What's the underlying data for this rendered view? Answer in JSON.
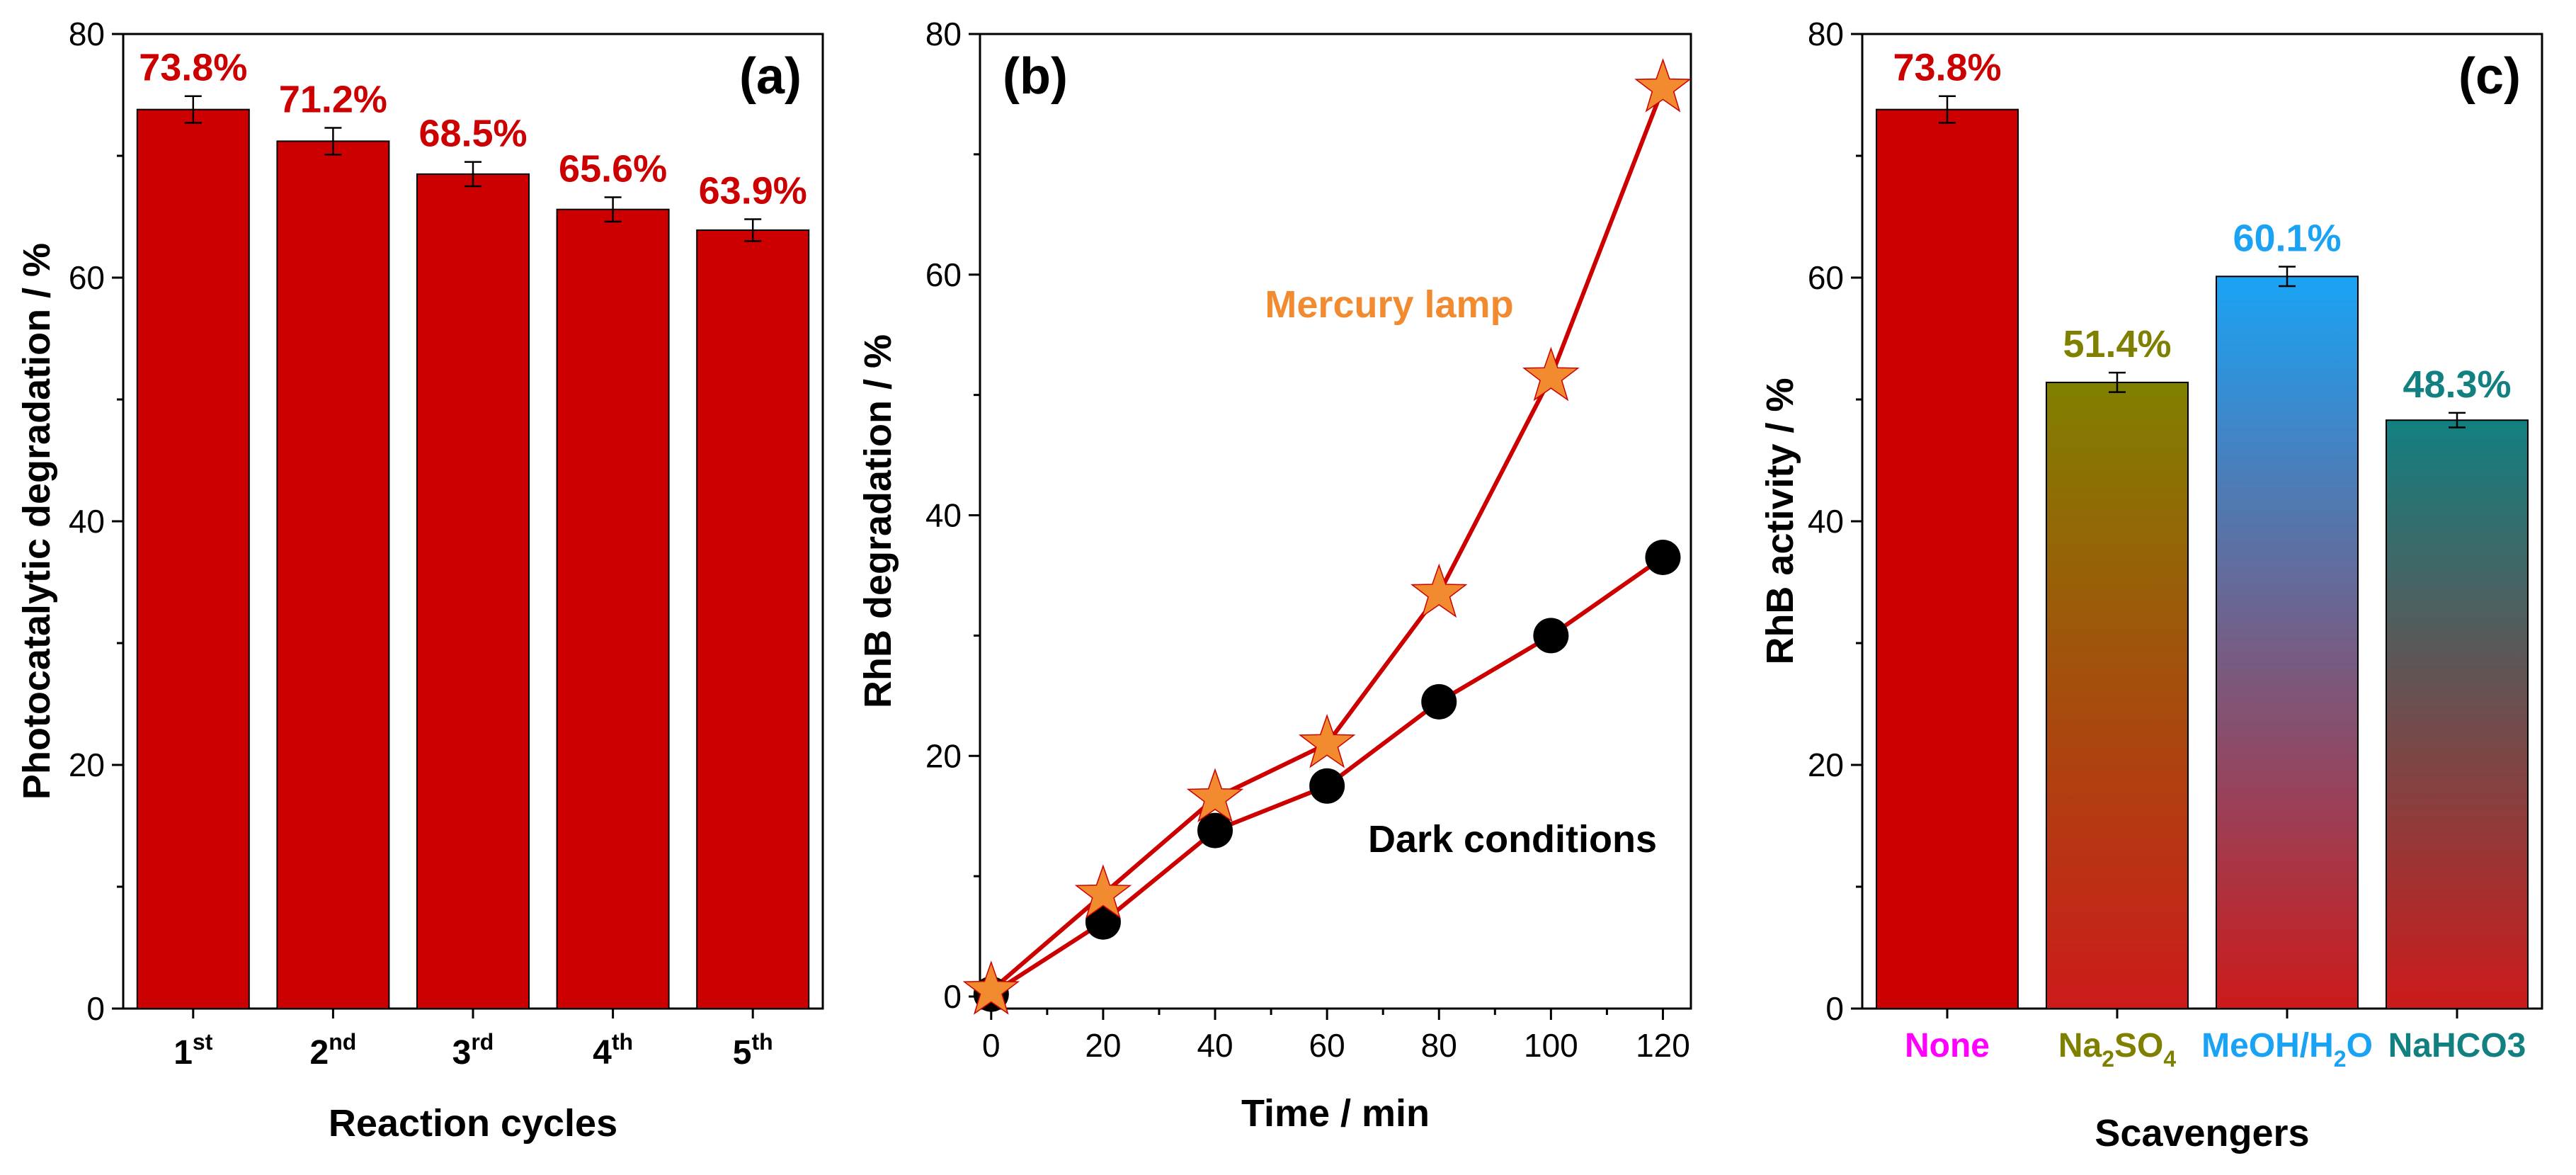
{
  "chart_data": [
    {
      "panel": "(a)",
      "type": "bar",
      "xlabel": "Reaction cycles",
      "ylabel": "Photocatalytic degradation / %",
      "ylim": [
        0,
        80
      ],
      "yticks": [
        0,
        20,
        40,
        60,
        80
      ],
      "categories": [
        {
          "base": "1",
          "sup": "st"
        },
        {
          "base": "2",
          "sup": "nd"
        },
        {
          "base": "3",
          "sup": "rd"
        },
        {
          "base": "4",
          "sup": "th"
        },
        {
          "base": "5",
          "sup": "th"
        }
      ],
      "values": [
        73.8,
        71.2,
        68.5,
        65.6,
        63.9
      ],
      "errors": [
        1.1,
        1.1,
        1.0,
        1.0,
        0.9
      ],
      "labels": [
        "73.8%",
        "71.2%",
        "68.5%",
        "65.6%",
        "63.9%"
      ],
      "bar_color": "#cc0000",
      "label_color": "#cc0000"
    },
    {
      "panel": "(b)",
      "type": "line",
      "xlabel": "Time / min",
      "ylabel": "RhB degradation / %",
      "xlim": [
        -2,
        125
      ],
      "ylim": [
        -1,
        80
      ],
      "xticks": [
        0,
        20,
        40,
        60,
        80,
        100,
        120
      ],
      "yticks": [
        0,
        20,
        40,
        60,
        80
      ],
      "line_color": "#cc0000",
      "series": [
        {
          "name": "Mercury lamp",
          "marker": "star",
          "marker_color": "#f28b30",
          "x": [
            0,
            20,
            40,
            60,
            80,
            100,
            120
          ],
          "y": [
            0.5,
            8.5,
            16.5,
            21.0,
            33.5,
            51.5,
            75.5
          ]
        },
        {
          "name": "Dark conditions",
          "marker": "circle",
          "marker_color": "#000000",
          "x": [
            0,
            20,
            40,
            60,
            80,
            100,
            120
          ],
          "y": [
            0.2,
            6.2,
            13.8,
            17.5,
            24.5,
            30.0,
            36.5
          ]
        }
      ],
      "annotations": [
        {
          "text": "Mercury lamp",
          "color": "#f28b30"
        },
        {
          "text": "Dark conditions",
          "color": "#000000"
        }
      ]
    },
    {
      "panel": "(c)",
      "type": "bar",
      "xlabel": "Scavengers",
      "ylabel": "RhB activity / %",
      "ylim": [
        0,
        80
      ],
      "yticks": [
        0,
        20,
        40,
        60,
        80
      ],
      "categories": [
        {
          "parts": [
            {
              "t": "None"
            }
          ],
          "color": "#ff00ff"
        },
        {
          "parts": [
            {
              "t": "Na"
            },
            {
              "t": "2",
              "sub": true
            },
            {
              "t": "SO"
            },
            {
              "t": "4",
              "sub": true
            }
          ],
          "color": "#808000"
        },
        {
          "parts": [
            {
              "t": "MeOH/H"
            },
            {
              "t": "2",
              "sub": true
            },
            {
              "t": "O"
            }
          ],
          "color": "#1aa3f5"
        },
        {
          "parts": [
            {
              "t": "NaHCO3"
            }
          ],
          "color": "#128080"
        }
      ],
      "values": [
        73.8,
        51.4,
        60.1,
        48.3
      ],
      "errors": [
        1.1,
        0.8,
        0.8,
        0.6
      ],
      "labels": [
        "73.8%",
        "51.4%",
        "60.1%",
        "48.3%"
      ],
      "label_colors": [
        "#cc0000",
        "#808000",
        "#1aa3f5",
        "#128080"
      ],
      "bar_fills": [
        {
          "top": "#cc0000",
          "bottom": "#cc0000"
        },
        {
          "top": "#808000",
          "bottom": "#cc1a1a"
        },
        {
          "top": "#1aa3f5",
          "bottom": "#cc1a1a"
        },
        {
          "top": "#128080",
          "bottom": "#cc1a1a"
        }
      ]
    }
  ]
}
